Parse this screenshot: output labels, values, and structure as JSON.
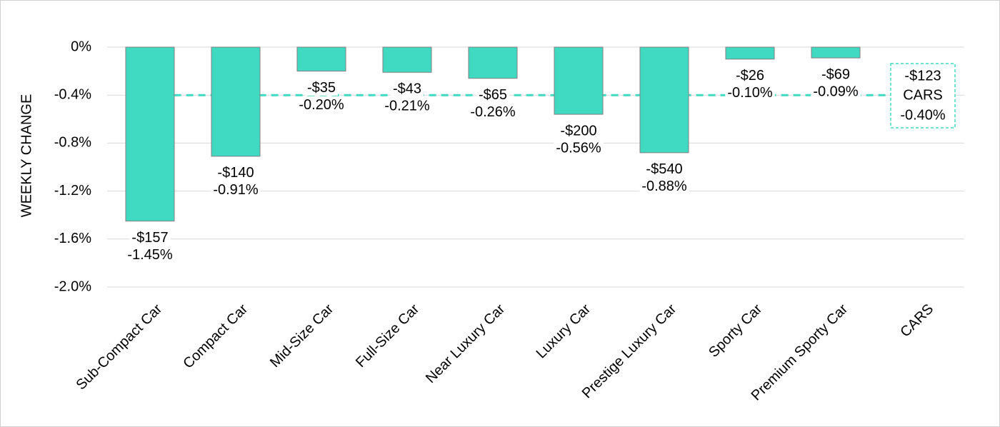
{
  "chart_data": {
    "type": "bar",
    "y_axis_label": "WEEKLY CHANGE",
    "categories": [
      "Sub-Compact Car",
      "Compact Car",
      "Mid-Size Car",
      "Full-Size Car",
      "Near Luxury Car",
      "Luxury Car",
      "Prestige Luxury Car",
      "Sporty Car",
      "Premium Sporty Car",
      "CARS"
    ],
    "values": [
      -1.45,
      -0.91,
      -0.2,
      -0.21,
      -0.26,
      -0.56,
      -0.88,
      -0.1,
      -0.09,
      null
    ],
    "value_labels": [
      "-1.45%",
      "-0.91%",
      "-0.20%",
      "-0.21%",
      "-0.26%",
      "-0.56%",
      "-0.88%",
      "-0.10%",
      "-0.09%",
      null
    ],
    "dollar_labels": [
      "-$157",
      "-$140",
      "-$35",
      "-$43",
      "-$65",
      "-$200",
      "-$540",
      "-$26",
      "-$69",
      null
    ],
    "color": "#40d9c1",
    "reference": {
      "name": "CARS",
      "value": -0.4,
      "value_label": "-0.40%",
      "dollar_label": "-$123",
      "color": "#40d9c1"
    },
    "ylim": [
      -2.0,
      0
    ],
    "yticks": [
      {
        "value": 0,
        "label": "0%"
      },
      {
        "value": -0.4,
        "label": "-0.4%"
      },
      {
        "value": -0.8,
        "label": "-0.8%"
      },
      {
        "value": -1.2,
        "label": "-1.2%"
      },
      {
        "value": -1.6,
        "label": "-1.6%"
      },
      {
        "value": -2.0,
        "label": "-2.0%"
      }
    ],
    "grid": true
  }
}
